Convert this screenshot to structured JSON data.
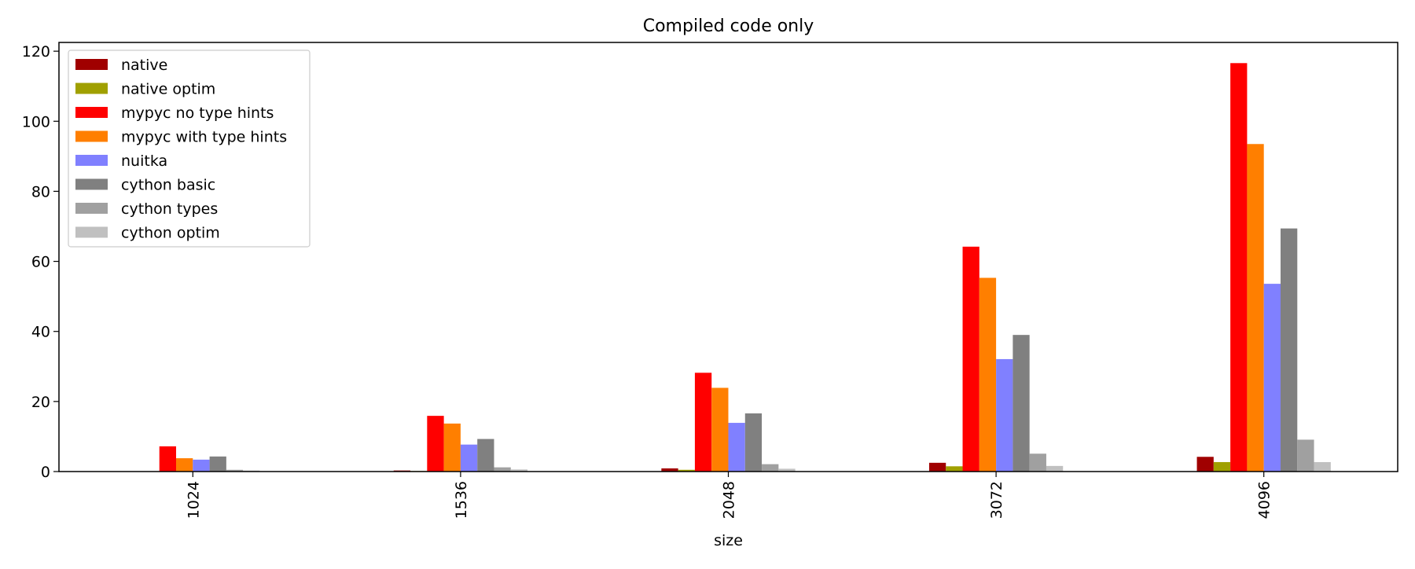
{
  "chart_data": {
    "type": "bar",
    "title": "Compiled code only",
    "xlabel": "size",
    "ylabel": "",
    "categories": [
      "1024",
      "1536",
      "2048",
      "3072",
      "4096"
    ],
    "ylim": [
      0,
      122.5
    ],
    "yticks": [
      0,
      20,
      40,
      60,
      80,
      100,
      120
    ],
    "grid": false,
    "legend_position": "top-left",
    "x_tick_rotation": "vertical",
    "series": [
      {
        "name": "native",
        "color": "#a00000",
        "values": [
          0.1,
          0.3,
          0.9,
          2.5,
          4.2
        ]
      },
      {
        "name": "native optim",
        "color": "#a0a000",
        "values": [
          0.05,
          0.15,
          0.5,
          1.5,
          2.7
        ]
      },
      {
        "name": "mypyc no type hints",
        "color": "#ff0000",
        "values": [
          7.2,
          15.9,
          28.2,
          64.2,
          116.6
        ]
      },
      {
        "name": "mypyc with type hints",
        "color": "#ff7f00",
        "values": [
          3.8,
          13.7,
          23.9,
          55.3,
          93.5
        ]
      },
      {
        "name": "nuitka",
        "color": "#8080ff",
        "values": [
          3.4,
          7.7,
          13.9,
          32.1,
          53.6
        ]
      },
      {
        "name": "cython basic",
        "color": "#808080",
        "values": [
          4.3,
          9.3,
          16.6,
          39.0,
          69.4
        ]
      },
      {
        "name": "cython types",
        "color": "#a0a0a0",
        "values": [
          0.5,
          1.2,
          2.1,
          5.1,
          9.1
        ]
      },
      {
        "name": "cython optim",
        "color": "#c0c0c0",
        "values": [
          0.3,
          0.6,
          0.8,
          1.6,
          2.7
        ]
      }
    ]
  }
}
